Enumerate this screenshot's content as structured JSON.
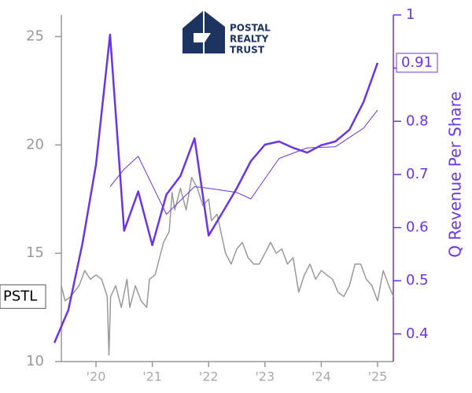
{
  "chart_data": {
    "type": "line",
    "logo": [
      "POSTAL",
      "REALTY",
      "TRUST"
    ],
    "y2_label": "Q Revenue Per Share",
    "xlim": [
      2019.385,
      2025.28
    ],
    "xticks": [
      {
        "value": 2020,
        "label": "'20"
      },
      {
        "value": 2021,
        "label": "'21"
      },
      {
        "value": 2022,
        "label": "'22"
      },
      {
        "value": 2023,
        "label": "'23"
      },
      {
        "value": 2024,
        "label": "'24"
      },
      {
        "value": 2025,
        "label": "'25"
      }
    ],
    "ylim": [
      10,
      26
    ],
    "yticks": [
      10,
      15,
      20,
      25
    ],
    "y2lim": [
      0.348,
      1.0
    ],
    "y2ticks": [
      0.4,
      0.5,
      0.6,
      0.7,
      0.8,
      0.9,
      1.0
    ],
    "series": [
      {
        "color": "#6a35e8",
        "axis": "y2",
        "width": 2.5,
        "x": [
          2019.26,
          2019.51,
          2019.76,
          2020.0,
          2020.25,
          2020.5,
          2020.75,
          2021.0,
          2021.25,
          2021.5,
          2021.75,
          2022.0,
          2022.25,
          2022.5,
          2022.75,
          2023.0,
          2023.25,
          2023.5,
          2023.75,
          2024.0,
          2024.25,
          2024.5,
          2024.75,
          2025.0
        ],
        "values": [
          0.383,
          0.445,
          0.57,
          0.718,
          0.963,
          0.594,
          0.668,
          0.567,
          0.662,
          0.697,
          0.768,
          0.585,
          0.629,
          0.674,
          0.725,
          0.756,
          0.762,
          0.75,
          0.741,
          0.755,
          0.762,
          0.784,
          0.836,
          0.91
        ]
      },
      {
        "color": "#6a35e8",
        "axis": "y2",
        "width": 1,
        "x": [
          2020.25,
          2020.5,
          2020.75,
          2021.25,
          2021.75,
          2022.0,
          2022.5,
          2022.75,
          2023.25,
          2023.75,
          2024.25,
          2024.75,
          2025.0
        ],
        "values": [
          0.677,
          0.71,
          0.734,
          0.625,
          0.677,
          0.674,
          0.666,
          0.654,
          0.73,
          0.75,
          0.752,
          0.787,
          0.821
        ]
      },
      {
        "name": "PSTL",
        "color": "#999999",
        "axis": "y",
        "width": 1.5,
        "x": [
          2019.385,
          2019.45,
          2019.55,
          2019.7,
          2019.8,
          2019.9,
          2020.0,
          2020.1,
          2020.2,
          2020.23,
          2020.26,
          2020.35,
          2020.45,
          2020.55,
          2020.6,
          2020.7,
          2020.8,
          2020.9,
          2020.95,
          2021.05,
          2021.15,
          2021.2,
          2021.3,
          2021.35,
          2021.4,
          2021.5,
          2021.55,
          2021.6,
          2021.7,
          2021.8,
          2021.9,
          2022.0,
          2022.05,
          2022.15,
          2022.2,
          2022.3,
          2022.4,
          2022.5,
          2022.6,
          2022.7,
          2022.8,
          2022.9,
          2023.0,
          2023.1,
          2023.2,
          2023.3,
          2023.4,
          2023.5,
          2023.6,
          2023.7,
          2023.8,
          2023.9,
          2024.0,
          2024.1,
          2024.2,
          2024.3,
          2024.4,
          2024.5,
          2024.6,
          2024.7,
          2024.8,
          2024.9,
          2025.0,
          2025.1,
          2025.2,
          2025.28
        ],
        "values": [
          13.5,
          12.8,
          13.0,
          13.5,
          14.2,
          13.8,
          14.0,
          13.8,
          13.0,
          10.3,
          13.0,
          13.5,
          12.5,
          13.8,
          12.5,
          13.5,
          12.8,
          12.5,
          13.8,
          14.0,
          15.0,
          15.5,
          16.0,
          17.8,
          17.0,
          18.0,
          17.5,
          17.0,
          18.5,
          18.0,
          17.2,
          17.5,
          16.5,
          16.8,
          16.2,
          15.0,
          14.5,
          15.2,
          15.5,
          14.8,
          14.5,
          14.5,
          15.0,
          15.5,
          15.0,
          15.2,
          14.5,
          14.8,
          13.2,
          14.0,
          14.5,
          13.8,
          14.2,
          14.0,
          13.8,
          13.2,
          13.0,
          13.5,
          14.5,
          14.5,
          13.8,
          13.5,
          12.8,
          14.2,
          13.5,
          13.0
        ]
      }
    ]
  }
}
